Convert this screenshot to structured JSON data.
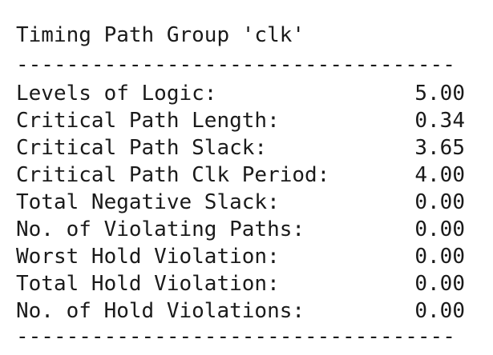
{
  "report": {
    "title": "Timing Path Group 'clk'",
    "separator": "-----------------------------------",
    "rows": [
      {
        "label": "Levels of Logic:",
        "value": "5.00"
      },
      {
        "label": "Critical Path Length:",
        "value": "0.34"
      },
      {
        "label": "Critical Path Slack:",
        "value": "3.65"
      },
      {
        "label": "Critical Path Clk Period:",
        "value": "4.00"
      },
      {
        "label": "Total Negative Slack:",
        "value": "0.00"
      },
      {
        "label": "No. of Violating Paths:",
        "value": "0.00"
      },
      {
        "label": "Worst Hold Violation:",
        "value": "0.00"
      },
      {
        "label": "Total Hold Violation:",
        "value": "0.00"
      },
      {
        "label": "No. of Hold Violations:",
        "value": "0.00"
      }
    ]
  }
}
